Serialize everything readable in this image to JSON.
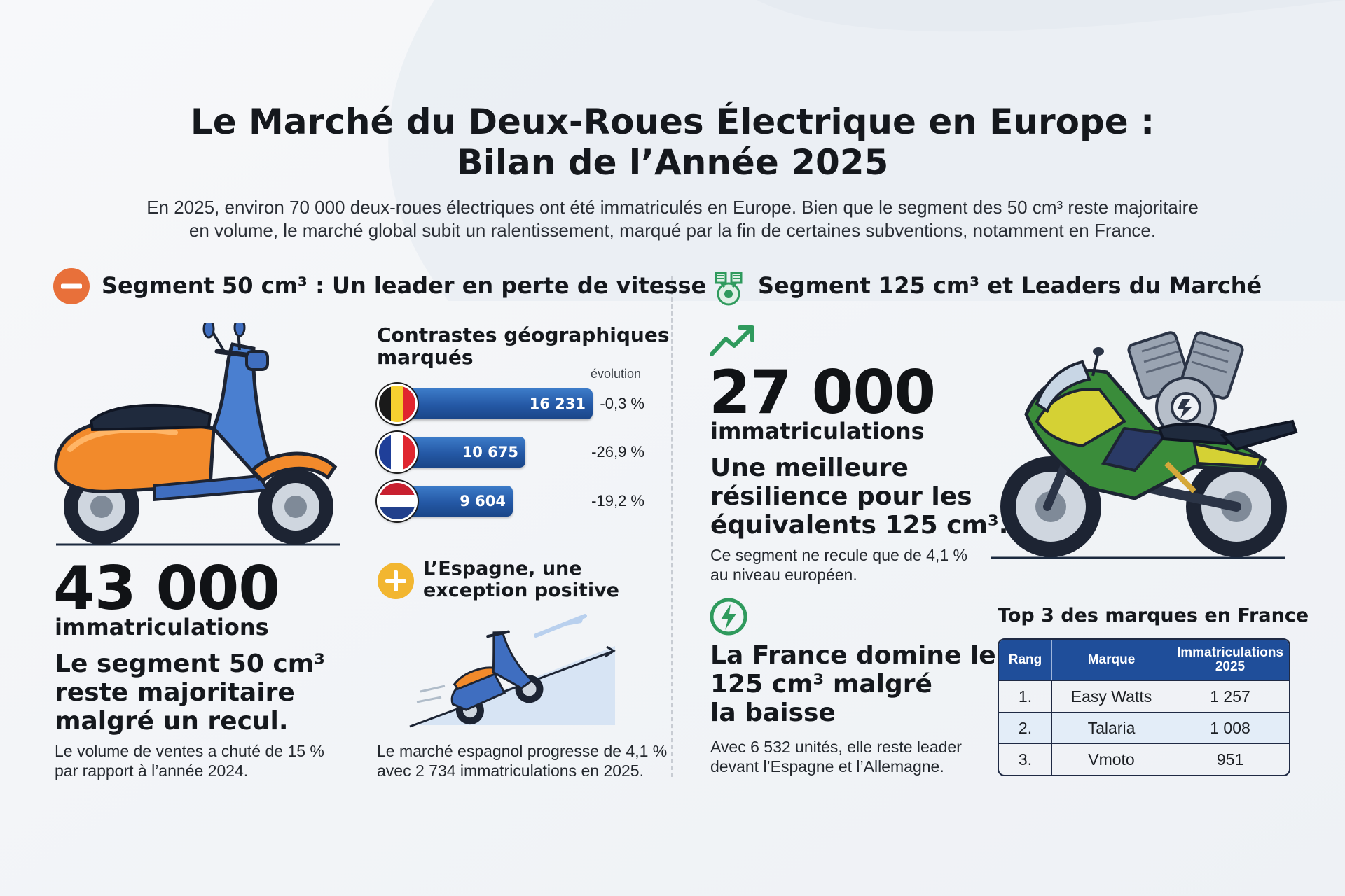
{
  "header": {
    "title_line1": "Le Marché du Deux-Roues Électrique en Europe :",
    "title_line2": "Bilan de l’Année 2025",
    "intro_line1": "En 2025, environ 70 000 deux-roues électriques ont été immatriculés en Europe. Bien que le segment des 50 cm³ reste majoritaire",
    "intro_line2": "en volume, le marché global subit un ralentissement, marqué par la fin de certaines subventions, notamment en France."
  },
  "left": {
    "section_title": "Segment 50 cm³ : Un leader en perte de vitesse",
    "section_icon": "minus-circle-icon",
    "geo": {
      "title_line1": "Contrastes géographiques",
      "title_line2": "marqués",
      "evolution_label": "évolution",
      "max_value": 16231,
      "bars": [
        {
          "flag": "belgium-flag-icon",
          "label": "16 231",
          "value": 16231,
          "evolution": "-0,3 %"
        },
        {
          "flag": "france-flag-icon",
          "label": "10 675",
          "value": 10675,
          "evolution": "-26,9 %"
        },
        {
          "flag": "netherlands-flag-icon",
          "label": "9 604",
          "value": 9604,
          "evolution": "-19,2 %"
        }
      ]
    },
    "stat": {
      "number": "43 000",
      "unit": "immatriculations",
      "headline_line1": "Le segment 50 cm³",
      "headline_line2": "reste majoritaire",
      "headline_line3": "malgré un recul.",
      "note_line1": "Le volume de ventes a chuté de 15 %",
      "note_line2": "par rapport à l’année 2024."
    },
    "spain": {
      "icon": "plus-circle-icon",
      "title_line1": "L’Espagne, une",
      "title_line2": "exception positive",
      "note_line1": "Le marché espagnol progresse de 4,1 %",
      "note_line2": "avec 2 734 immatriculations en 2025."
    }
  },
  "right": {
    "section_title": "Segment 125 cm³ et Leaders du Marché",
    "section_icon": "engine-icon",
    "stat": {
      "number": "27 000",
      "unit": "immatriculations",
      "headline_line1": "Une meilleure",
      "headline_line2": "résilience pour les",
      "headline_line3": "équivalents 125 cm³.",
      "note_line1": "Ce segment ne recule que de 4,1 %",
      "note_line2": "au niveau européen."
    },
    "france": {
      "icon": "lightning-circle-icon",
      "headline_line1": "La France domine le",
      "headline_line2": "125 cm³ malgré",
      "headline_line3": "la baisse",
      "note_line1": "Avec 6 532 unités, elle reste leader",
      "note_line2": "devant l’Espagne et l’Allemagne."
    },
    "top3": {
      "title": "Top 3 des marques en France",
      "headers": [
        "Rang",
        "Marque",
        "Immatriculations 2025"
      ],
      "rows": [
        [
          "1.",
          "Easy Watts",
          "1 257"
        ],
        [
          "2.",
          "Talaria",
          "1 008"
        ],
        [
          "3.",
          "Vmoto",
          "951"
        ]
      ]
    }
  },
  "colors": {
    "accent_orange": "#e8703a",
    "accent_yellow": "#f2b630",
    "accent_green": "#2f9a5d",
    "bar_blue": "#2458a5",
    "table_header": "#1f4e9a"
  }
}
